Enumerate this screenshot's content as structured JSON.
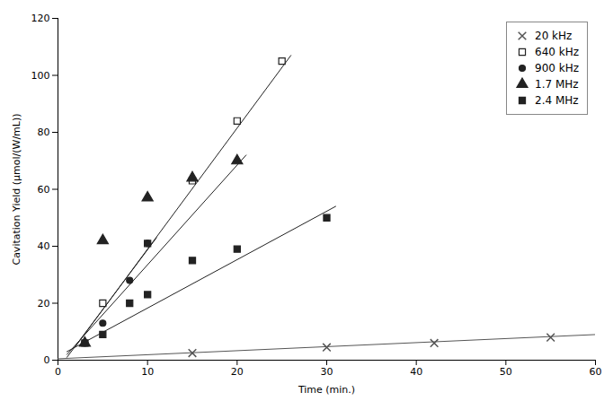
{
  "chart_data": {
    "type": "scatter",
    "xlabel": "Time (min.)",
    "ylabel": "Cavitation Yield (μmol/(W/mL))",
    "xlim": [
      0,
      60
    ],
    "ylim": [
      0,
      120
    ],
    "xticks": [
      0,
      10,
      20,
      30,
      40,
      50,
      60
    ],
    "yticks": [
      0,
      20,
      40,
      60,
      80,
      100,
      120
    ],
    "grid": false,
    "legend": "upper right",
    "series": [
      {
        "name": "20 kHz",
        "color": "#555555",
        "marker": "x",
        "x": [
          15,
          30,
          42,
          55
        ],
        "values": [
          2.5,
          4.5,
          6.0,
          8.0
        ],
        "fit_x": [
          0,
          60
        ],
        "fit_y": [
          0.5,
          9.0
        ]
      },
      {
        "name": "640 kHz",
        "color": "#222222",
        "marker": "square-open",
        "x": [
          5,
          10,
          15,
          20,
          25
        ],
        "values": [
          20,
          41,
          63,
          84,
          105
        ],
        "fit_x": [
          2,
          26
        ],
        "fit_y": [
          5,
          107
        ]
      },
      {
        "name": "900 kHz",
        "color": "#222222",
        "marker": "circle",
        "x": [
          3,
          5,
          8,
          10
        ],
        "values": [
          6,
          13,
          28,
          41
        ],
        "fit_x": [
          1,
          11
        ],
        "fit_y": [
          1,
          43
        ]
      },
      {
        "name": "1.7 MHz",
        "color": "#222222",
        "marker": "triangle",
        "x": [
          3,
          5,
          10,
          15,
          20
        ],
        "values": [
          6,
          42,
          57,
          64,
          70
        ],
        "fit_x": [
          1,
          21
        ],
        "fit_y": [
          2,
          72
        ]
      },
      {
        "name": "2.4 MHz",
        "color": "#222222",
        "marker": "square",
        "x": [
          3,
          5,
          8,
          10,
          15,
          20,
          30
        ],
        "values": [
          6,
          9,
          20,
          23,
          35,
          39,
          50
        ],
        "fit_x": [
          1,
          31
        ],
        "fit_y": [
          3,
          54
        ]
      }
    ]
  }
}
